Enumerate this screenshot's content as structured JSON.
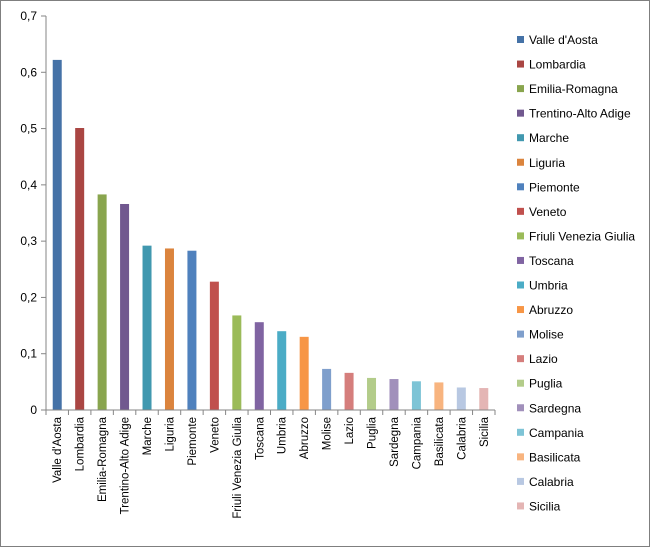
{
  "chart_data": {
    "type": "bar",
    "title": "",
    "xlabel": "",
    "ylabel": "",
    "ylim": [
      0,
      0.7
    ],
    "yticks": [
      "0",
      "0,1",
      "0,2",
      "0,3",
      "0,4",
      "0,5",
      "0,6",
      "0,7"
    ],
    "grid": false,
    "legend_position": "right",
    "categories": [
      "Valle d'Aosta",
      "Lombardia",
      "Emilia-Romagna",
      "Trentino-Alto Adige",
      "Marche",
      "Liguria",
      "Piemonte",
      "Veneto",
      "Friuli Venezia Giulia",
      "Toscana",
      "Umbria",
      "Abruzzo",
      "Molise",
      "Lazio",
      "Puglia",
      "Sardegna",
      "Campania",
      "Basilicata",
      "Calabria",
      "Sicilia"
    ],
    "values": [
      0.622,
      0.501,
      0.383,
      0.366,
      0.292,
      0.287,
      0.283,
      0.228,
      0.168,
      0.156,
      0.14,
      0.13,
      0.073,
      0.066,
      0.057,
      0.055,
      0.051,
      0.049,
      0.04,
      0.039
    ],
    "colors": [
      "#4572a7",
      "#aa4643",
      "#89a54e",
      "#71588f",
      "#4198af",
      "#db843d",
      "#4f81bd",
      "#c0504d",
      "#9bbb59",
      "#8064a2",
      "#4bacc6",
      "#f79646",
      "#7f9fcc",
      "#d57e7c",
      "#b3cc8a",
      "#a190bb",
      "#7ec4d6",
      "#f8b47f",
      "#b8c8e2",
      "#e4b5b4"
    ]
  }
}
